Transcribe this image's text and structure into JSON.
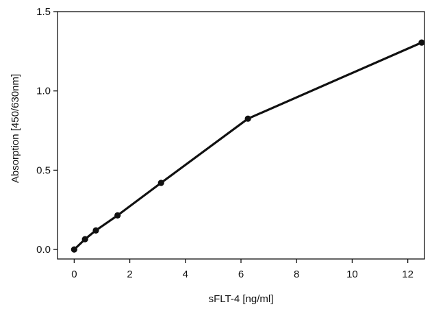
{
  "chart_data": {
    "type": "line",
    "title": "",
    "xlabel": "sFLT-4 [ng/ml]",
    "ylabel": "Absorption [450/630nm]",
    "xlim": [
      -0.6,
      12.6
    ],
    "ylim": [
      -0.06,
      1.5
    ],
    "x_ticks": [
      0,
      2,
      4,
      6,
      8,
      10,
      12
    ],
    "x_tick_labels": [
      "0",
      "2",
      "4",
      "6",
      "8",
      "10",
      "12"
    ],
    "y_ticks": [
      0.0,
      0.5,
      1.0,
      1.5
    ],
    "y_tick_labels": [
      "0.0",
      "0.5",
      "1.0",
      "1.5"
    ],
    "grid": false,
    "series": [
      {
        "x": [
          0,
          0.39,
          0.78,
          1.56,
          3.125,
          6.25,
          12.5
        ],
        "y": [
          0.0,
          0.065,
          0.12,
          0.215,
          0.42,
          0.825,
          1.305
        ]
      }
    ],
    "colors": {
      "line": "#111111",
      "marker": "#111111",
      "axis": "#111111"
    }
  }
}
